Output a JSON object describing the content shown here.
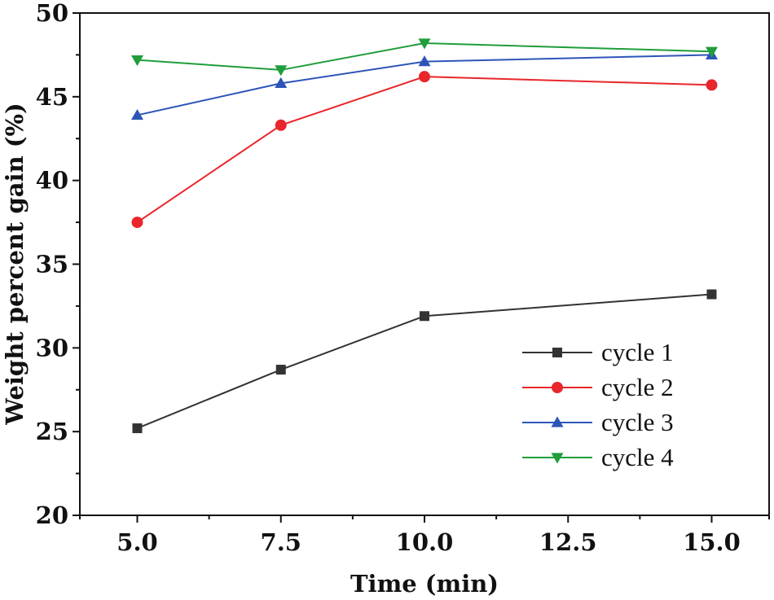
{
  "chart_data": {
    "type": "line",
    "title": "",
    "xlabel": "Time (min)",
    "ylabel": "Weight percent gain (%)",
    "xlim": [
      4.0,
      16.0
    ],
    "ylim": [
      20,
      50
    ],
    "xticks": [
      5.0,
      7.5,
      10.0,
      12.5,
      15.0
    ],
    "xtick_labels": [
      "5.0",
      "7.5",
      "10.0",
      "12.5",
      "15.0"
    ],
    "yticks": [
      20,
      25,
      30,
      35,
      40,
      45,
      50
    ],
    "ytick_labels": [
      "20",
      "25",
      "30",
      "35",
      "40",
      "45",
      "50"
    ],
    "grid": false,
    "legend_position": "lower-right",
    "x": [
      5.0,
      7.5,
      10.0,
      15.0
    ],
    "series": [
      {
        "name": "cycle 1",
        "marker": "square",
        "color": "#333333",
        "values": [
          25.2,
          28.7,
          31.9,
          33.2
        ]
      },
      {
        "name": "cycle 2",
        "marker": "circle",
        "color": "#e8262b",
        "values": [
          37.5,
          43.3,
          46.2,
          45.7
        ]
      },
      {
        "name": "cycle 3",
        "marker": "triangle-up",
        "color": "#2d55b8",
        "values": [
          43.9,
          45.8,
          47.1,
          47.5
        ]
      },
      {
        "name": "cycle 4",
        "marker": "triangle-down",
        "color": "#1f9e3b",
        "values": [
          47.2,
          46.6,
          48.2,
          47.7
        ]
      }
    ]
  }
}
